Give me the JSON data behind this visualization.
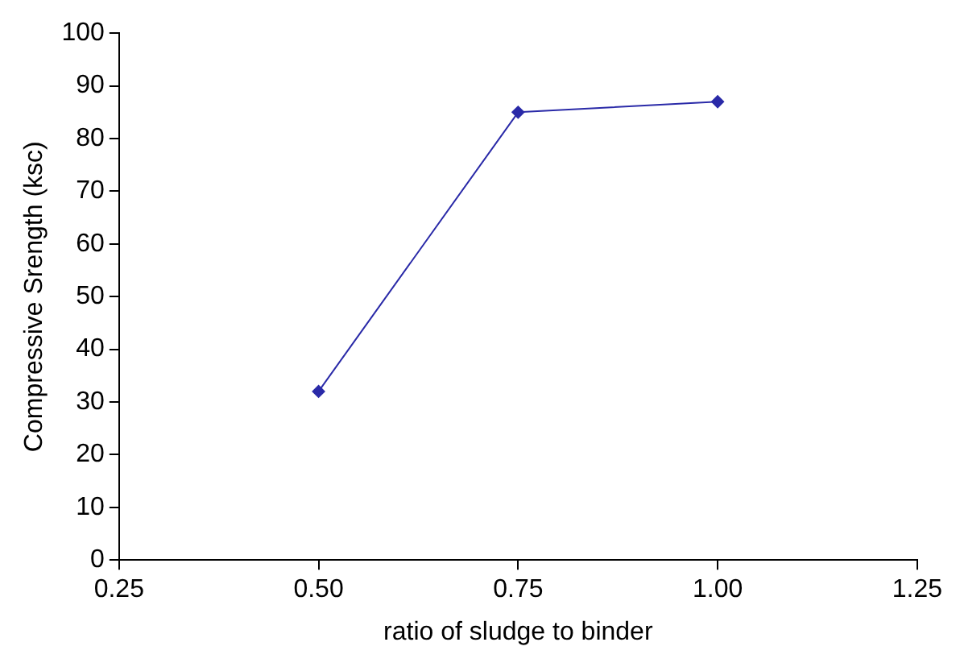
{
  "chart_data": {
    "type": "line",
    "xlabel": "ratio of sludge to binder",
    "ylabel": "Compressive Srength (ksc)",
    "x": [
      0.5,
      0.75,
      1.0
    ],
    "series": [
      {
        "color": "#2a2aa8",
        "values": [
          32,
          85,
          87
        ]
      }
    ],
    "xlim": [
      0.25,
      1.25
    ],
    "xticks": [
      {
        "value": 0.25,
        "label": "0.25"
      },
      {
        "value": 0.5,
        "label": "0.50"
      },
      {
        "value": 0.75,
        "label": "0.75"
      },
      {
        "value": 1,
        "label": "1.00"
      },
      {
        "value": 1.25,
        "label": "1.25"
      }
    ],
    "ylim": [
      0,
      100
    ],
    "yticks": [
      0,
      10,
      20,
      30,
      40,
      50,
      60,
      70,
      80,
      90,
      100
    ],
    "grid": false,
    "legend": false,
    "marker": "diamond",
    "line_style": "solid"
  }
}
